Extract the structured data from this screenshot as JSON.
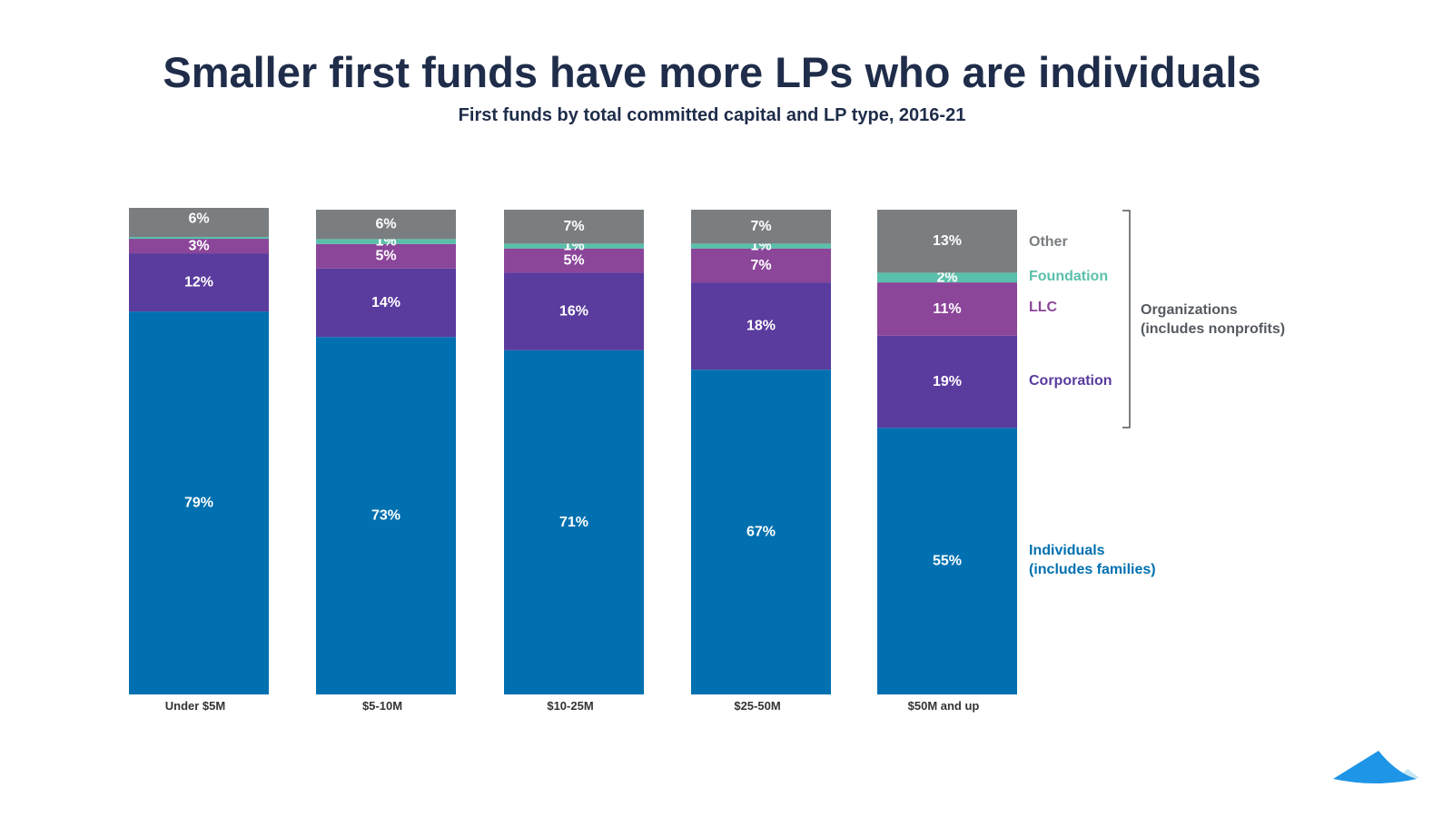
{
  "chart_data": {
    "type": "bar",
    "stacked": true,
    "title": "Smaller first funds have more LPs who are individuals",
    "subtitle": "First funds by total committed capital and LP type, 2016-21",
    "categories": [
      "Under $5M",
      "$5-10M",
      "$10-25M",
      "$25-50M",
      "$50M and up"
    ],
    "unit": "%",
    "series": [
      {
        "name": "Individuals (includes families)",
        "color": "#0070b0",
        "values": [
          79,
          73,
          71,
          67,
          55
        ]
      },
      {
        "name": "Corporation",
        "color": "#5a3b9e",
        "values": [
          12,
          14,
          16,
          18,
          19
        ]
      },
      {
        "name": "LLC",
        "color": "#8b4599",
        "values": [
          3,
          5,
          5,
          7,
          11
        ]
      },
      {
        "name": "Foundation",
        "color": "#5ac0ab",
        "values": [
          0,
          1,
          1,
          1,
          2
        ]
      },
      {
        "name": "Other",
        "color": "#7a7e80",
        "values": [
          6,
          6,
          7,
          7,
          13
        ]
      }
    ],
    "legend": {
      "placement": "right",
      "items": [
        {
          "label": "Other",
          "color": "#7a7e80"
        },
        {
          "label": "Foundation",
          "color": "#5ac0ab"
        },
        {
          "label": "LLC",
          "color": "#8b4599"
        },
        {
          "label": "Corporation",
          "color": "#5a3b9e"
        },
        {
          "label_lines": [
            "Individuals",
            "(includes families)"
          ],
          "color": "#0070b0"
        }
      ],
      "group_label_lines": [
        "Organizations",
        "(includes nonprofits)"
      ]
    },
    "ylim": [
      0,
      100
    ],
    "grid": false
  },
  "logo": "mountain-logo"
}
